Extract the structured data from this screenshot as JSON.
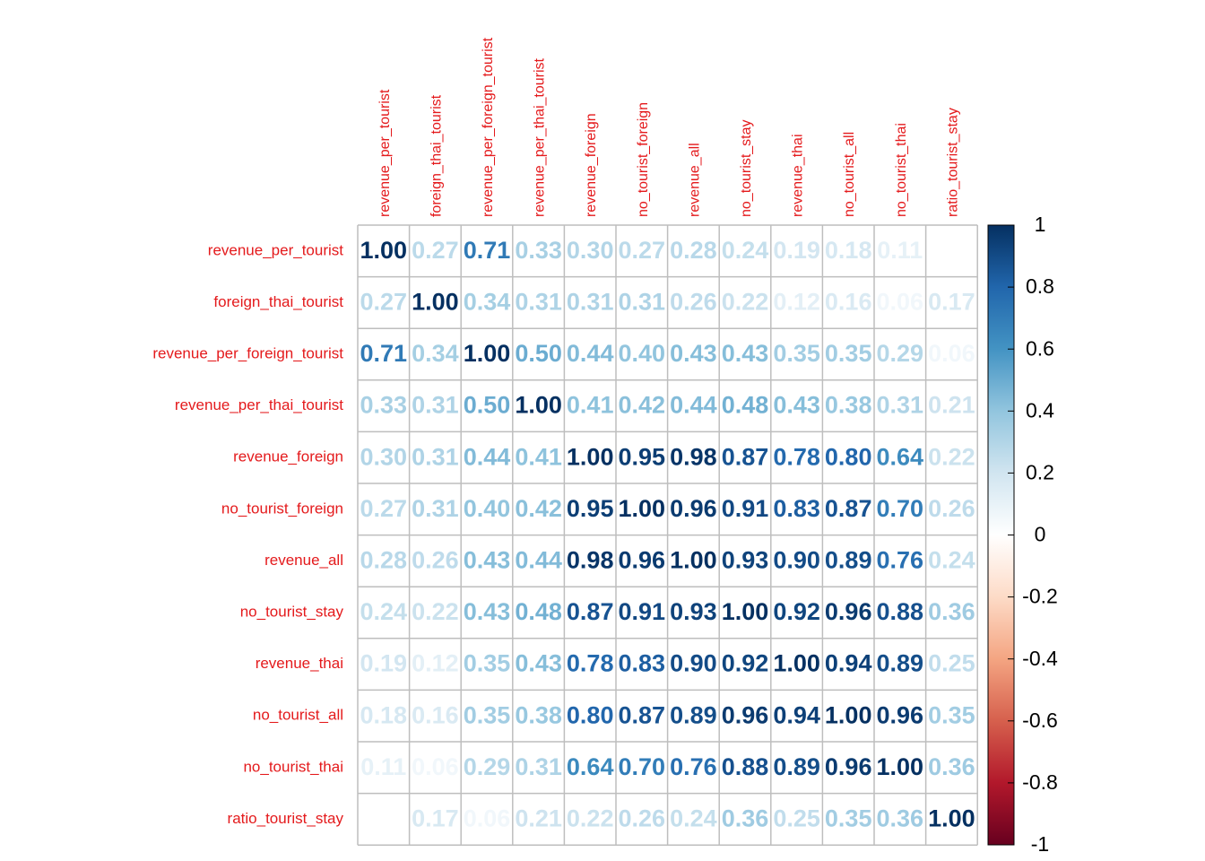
{
  "chart_data": {
    "type": "heatmap",
    "title": "",
    "variables": [
      "revenue_per_tourist",
      "foreign_thai_tourist",
      "revenue_per_foreign_tourist",
      "revenue_per_thai_tourist",
      "revenue_foreign",
      "no_tourist_foreign",
      "revenue_all",
      "no_tourist_stay",
      "revenue_thai",
      "no_tourist_all",
      "no_tourist_thai",
      "ratio_tourist_stay"
    ],
    "matrix": [
      [
        1.0,
        0.27,
        0.71,
        0.33,
        0.3,
        0.27,
        0.28,
        0.24,
        0.19,
        0.18,
        0.11,
        0.0
      ],
      [
        0.27,
        1.0,
        0.34,
        0.31,
        0.31,
        0.31,
        0.26,
        0.22,
        0.12,
        0.16,
        0.06,
        0.17
      ],
      [
        0.71,
        0.34,
        1.0,
        0.5,
        0.44,
        0.4,
        0.43,
        0.43,
        0.35,
        0.35,
        0.29,
        0.06
      ],
      [
        0.33,
        0.31,
        0.5,
        1.0,
        0.41,
        0.42,
        0.44,
        0.48,
        0.43,
        0.38,
        0.31,
        0.21
      ],
      [
        0.3,
        0.31,
        0.44,
        0.41,
        1.0,
        0.95,
        0.98,
        0.87,
        0.78,
        0.8,
        0.64,
        0.22
      ],
      [
        0.27,
        0.31,
        0.4,
        0.42,
        0.95,
        1.0,
        0.96,
        0.91,
        0.83,
        0.87,
        0.7,
        0.26
      ],
      [
        0.28,
        0.26,
        0.43,
        0.44,
        0.98,
        0.96,
        1.0,
        0.93,
        0.9,
        0.89,
        0.76,
        0.24
      ],
      [
        0.24,
        0.22,
        0.43,
        0.48,
        0.87,
        0.91,
        0.93,
        1.0,
        0.92,
        0.96,
        0.88,
        0.36
      ],
      [
        0.19,
        0.12,
        0.35,
        0.43,
        0.78,
        0.83,
        0.9,
        0.92,
        1.0,
        0.94,
        0.89,
        0.25
      ],
      [
        0.18,
        0.16,
        0.35,
        0.38,
        0.8,
        0.87,
        0.89,
        0.96,
        0.94,
        1.0,
        0.96,
        0.35
      ],
      [
        0.11,
        0.06,
        0.29,
        0.31,
        0.64,
        0.7,
        0.76,
        0.88,
        0.89,
        0.96,
        1.0,
        0.36
      ],
      [
        0.0,
        0.17,
        0.06,
        0.21,
        0.22,
        0.26,
        0.24,
        0.36,
        0.25,
        0.35,
        0.36,
        1.0
      ]
    ],
    "color_scale": {
      "range": [
        -1,
        1
      ],
      "ticks": [
        "1",
        "0.8",
        "0.6",
        "0.4",
        "0.2",
        "0",
        "-0.2",
        "-0.4",
        "-0.6",
        "-0.8",
        "-1"
      ],
      "colors": [
        "#67001F",
        "#B2182B",
        "#D6604D",
        "#F4A582",
        "#FDDBC7",
        "#FFFFFF",
        "#D1E5F0",
        "#92C5DE",
        "#4393C3",
        "#2166AC",
        "#053061"
      ]
    },
    "label_color": "#E41A1C",
    "grid_color": "#BEBEBE",
    "legend_position": "right"
  }
}
